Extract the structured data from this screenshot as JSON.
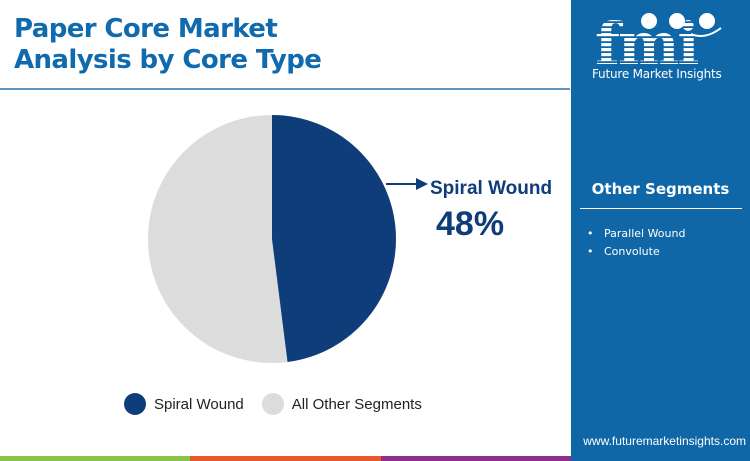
{
  "header": {
    "title_line1": "Paper Core Market",
    "title_line2": "Analysis by Core Type"
  },
  "colors": {
    "title": "#0f6aae",
    "primary_slice": "#0e3d7a",
    "other_slice": "#dcdcdc",
    "sidebar_bg": "#0f67a7",
    "bar_green": "#8bc34a",
    "bar_orange": "#e8582a",
    "bar_purple": "#8e2f8c"
  },
  "callout": {
    "label": "Spiral Wound",
    "value": "48%"
  },
  "legend": {
    "items": [
      {
        "label": "Spiral Wound",
        "color": "#0e3d7a"
      },
      {
        "label": "All Other Segments",
        "color": "#dcdcdc"
      }
    ]
  },
  "sidebar": {
    "logo_text": "fmi",
    "brand_name": "Future Market Insights",
    "other_segments_title": "Other Segments",
    "other_segments": [
      "Parallel Wound",
      "Convolute"
    ],
    "bullet": "•",
    "url": "www.futuremarketinsights.com"
  },
  "chart_data": {
    "type": "pie",
    "title": "Paper Core Market Analysis by Core Type",
    "categories": [
      "Spiral Wound",
      "All Other Segments"
    ],
    "values": [
      48,
      52
    ],
    "unit": "%",
    "annotations": [
      {
        "label": "Spiral Wound",
        "value": "48%"
      }
    ],
    "legend_position": "bottom",
    "other_segments_breakdown": [
      "Parallel Wound",
      "Convolute"
    ]
  }
}
